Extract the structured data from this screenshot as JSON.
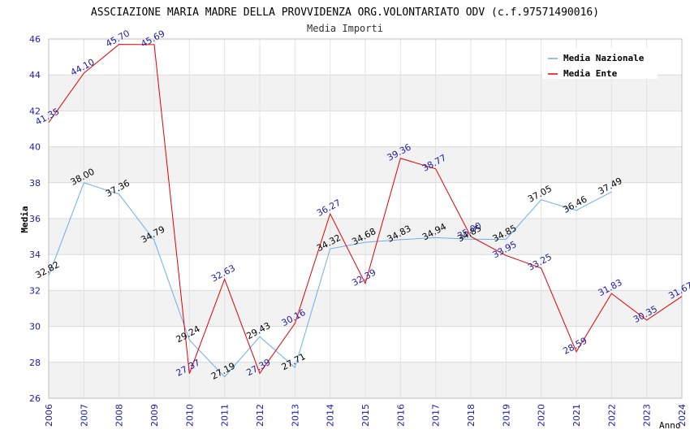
{
  "chart_data": {
    "type": "line",
    "title": "ASSCIAZIONE MARIA MADRE DELLA PROVVIDENZA ORG.VOLONTARIATO ODV (c.f.97571490016)",
    "subtitle": "Media Importi",
    "xlabel": "Anno",
    "ylabel": "Media",
    "ylim": [
      26,
      46
    ],
    "yticks": [
      "26",
      "28",
      "30",
      "32",
      "34",
      "36",
      "38",
      "40",
      "42",
      "44",
      "46"
    ],
    "yticks_values": [
      26,
      28,
      30,
      32,
      34,
      36,
      38,
      40,
      42,
      44,
      46
    ],
    "categories": [
      "2006",
      "2007",
      "2008",
      "2009",
      "2010",
      "2011",
      "2012",
      "2013",
      "2014",
      "2015",
      "2016",
      "2017",
      "2018",
      "2019",
      "2020",
      "2021",
      "2022",
      "2023",
      "2024"
    ],
    "legend_position": "top-right",
    "series": [
      {
        "name": "Media Nazionale",
        "color": "#6aaee8",
        "values": [
          32.82,
          38.0,
          37.36,
          34.79,
          29.24,
          27.19,
          29.43,
          27.71,
          34.32,
          34.68,
          34.83,
          34.94,
          34.85,
          34.85,
          37.05,
          36.46,
          37.49,
          null,
          null
        ],
        "labels": [
          "32.82",
          "38.00",
          "37.36",
          "34.79",
          "29.24",
          "27.19",
          "29.43",
          "27.71",
          "34.32",
          "34.68",
          "34.83",
          "34.94",
          "34.85",
          "34.85",
          "37.05",
          "36.46",
          "37.49",
          null,
          null
        ]
      },
      {
        "name": "Media Ente",
        "color": "#e00000",
        "values": [
          41.35,
          44.1,
          45.7,
          45.69,
          27.37,
          32.63,
          27.39,
          30.16,
          36.27,
          32.39,
          39.36,
          38.77,
          35.0,
          33.95,
          33.25,
          28.59,
          31.83,
          30.35,
          31.67
        ],
        "labels": [
          "41.35",
          "44.10",
          "45.70",
          "45.69",
          "27.37",
          "32.63",
          "27.39",
          "30.16",
          "36.27",
          "32.39",
          "39.36",
          "38.77",
          "35.00",
          "33.95",
          "33.25",
          "28.59",
          "31.83",
          "30.35",
          "31.67"
        ]
      }
    ]
  }
}
